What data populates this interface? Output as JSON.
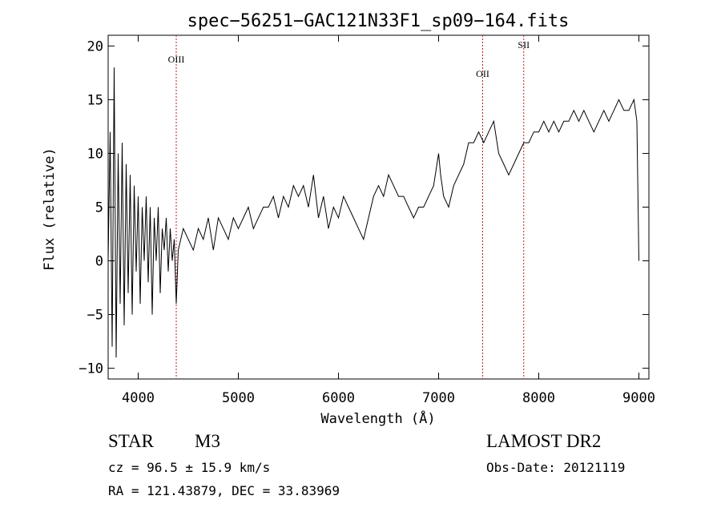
{
  "chart_data": {
    "type": "line",
    "title": "spec−56251−GAC121N33F1_sp09−164.fits",
    "xlabel": "Wavelength (Å)",
    "ylabel": "Flux (relative)",
    "xlim": [
      3700,
      9100
    ],
    "ylim": [
      -11,
      21
    ],
    "xticks": [
      4000,
      5000,
      6000,
      7000,
      8000,
      9000
    ],
    "yticks": [
      -10,
      -5,
      0,
      5,
      10,
      15,
      20
    ],
    "ytick_labels": [
      "−10",
      "−5",
      "0",
      "5",
      "10",
      "15",
      "20"
    ],
    "grid": false,
    "line_color": "#000000",
    "series": [
      {
        "x": [
          3700,
          3720,
          3740,
          3760,
          3780,
          3800,
          3820,
          3840,
          3860,
          3880,
          3900,
          3920,
          3940,
          3960,
          3980,
          4000,
          4020,
          4040,
          4060,
          4080,
          4100,
          4120,
          4140,
          4160,
          4180,
          4200,
          4220,
          4240,
          4260,
          4280,
          4300,
          4320,
          4340,
          4360,
          4380,
          4400,
          4450,
          4500,
          4550,
          4600,
          4650,
          4700,
          4750,
          4800,
          4850,
          4900,
          4950,
          5000,
          5050,
          5100,
          5150,
          5200,
          5250,
          5300,
          5350,
          5400,
          5450,
          5500,
          5550,
          5600,
          5650,
          5700,
          5750,
          5800,
          5850,
          5900,
          5950,
          6000,
          6050,
          6100,
          6150,
          6200,
          6250,
          6300,
          6350,
          6400,
          6450,
          6500,
          6550,
          6600,
          6650,
          6700,
          6750,
          6800,
          6850,
          6900,
          6950,
          7000,
          7020,
          7050,
          7100,
          7150,
          7200,
          7250,
          7300,
          7350,
          7400,
          7450,
          7500,
          7550,
          7600,
          7650,
          7700,
          7750,
          7800,
          7850,
          7900,
          7950,
          8000,
          8050,
          8100,
          8150,
          8200,
          8250,
          8300,
          8350,
          8400,
          8450,
          8500,
          8550,
          8600,
          8650,
          8700,
          8750,
          8800,
          8850,
          8900,
          8950,
          8980,
          9000
        ],
        "y": [
          0,
          12,
          -8,
          18,
          -9,
          10,
          -4,
          11,
          -6,
          9,
          -3,
          8,
          -5,
          7,
          -1,
          6,
          -4,
          5,
          0,
          6,
          -2,
          5,
          -5,
          4,
          0,
          5,
          -3,
          3,
          1,
          4,
          -1,
          3,
          0,
          2,
          -4,
          1,
          3,
          2,
          1,
          3,
          2,
          4,
          1,
          4,
          3,
          2,
          4,
          3,
          4,
          5,
          3,
          4,
          5,
          5,
          6,
          4,
          6,
          5,
          7,
          6,
          7,
          5,
          8,
          4,
          6,
          3,
          5,
          4,
          6,
          5,
          4,
          3,
          2,
          4,
          6,
          7,
          6,
          8,
          7,
          6,
          6,
          5,
          4,
          5,
          5,
          6,
          7,
          10,
          8,
          6,
          5,
          7,
          8,
          9,
          11,
          11,
          12,
          11,
          12,
          13,
          10,
          9,
          8,
          9,
          10,
          11,
          11,
          12,
          12,
          13,
          12,
          13,
          12,
          13,
          13,
          14,
          13,
          14,
          13,
          12,
          13,
          14,
          13,
          14,
          15,
          14,
          14,
          15,
          13,
          0
        ]
      }
    ],
    "lines_markers": [
      {
        "label": "OIII",
        "x": 4380
      },
      {
        "label": "OII",
        "x": 7440
      },
      {
        "label": "SII",
        "x": 7850
      }
    ],
    "marker_color": "#b22222"
  },
  "info": {
    "object_class": "STAR",
    "subclass": "M3",
    "cz": "cz = 96.5 ± 15.9 km/s",
    "coords": "RA = 121.43879, DEC =  33.83969",
    "survey": "LAMOST DR2",
    "obs_date": "Obs-Date: 20121119"
  }
}
